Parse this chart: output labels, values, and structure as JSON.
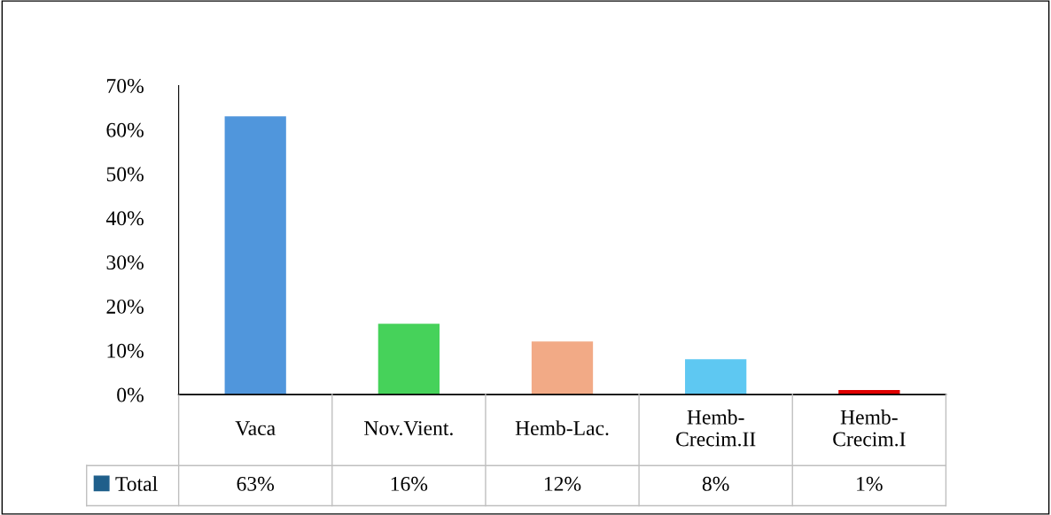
{
  "chart_data": {
    "type": "bar",
    "categories": [
      "Vaca",
      "Nov.Vient.",
      "Hemb-Lac.",
      "Hemb-Crecim.II",
      "Hemb-Crecim.I"
    ],
    "series": [
      {
        "name": "Total",
        "color": "#1f5f8b",
        "colors": [
          "#5096dc",
          "#46d25a",
          "#f2aa86",
          "#5ec8f2",
          "#e00000"
        ],
        "values": [
          63,
          16,
          12,
          8,
          1
        ],
        "value_labels": [
          "63%",
          "16%",
          "12%",
          "8%",
          "1%"
        ]
      }
    ],
    "ylim": [
      0,
      70
    ],
    "yticks": [
      {
        "value": 0,
        "label": "0%"
      },
      {
        "value": 10,
        "label": "10%"
      },
      {
        "value": 20,
        "label": "20%"
      },
      {
        "value": 30,
        "label": "30%"
      },
      {
        "value": 40,
        "label": "40%"
      },
      {
        "value": 50,
        "label": "50%"
      },
      {
        "value": 60,
        "label": "60%"
      },
      {
        "value": 70,
        "label": "70%"
      }
    ],
    "grid": false,
    "legend": "bottom"
  }
}
